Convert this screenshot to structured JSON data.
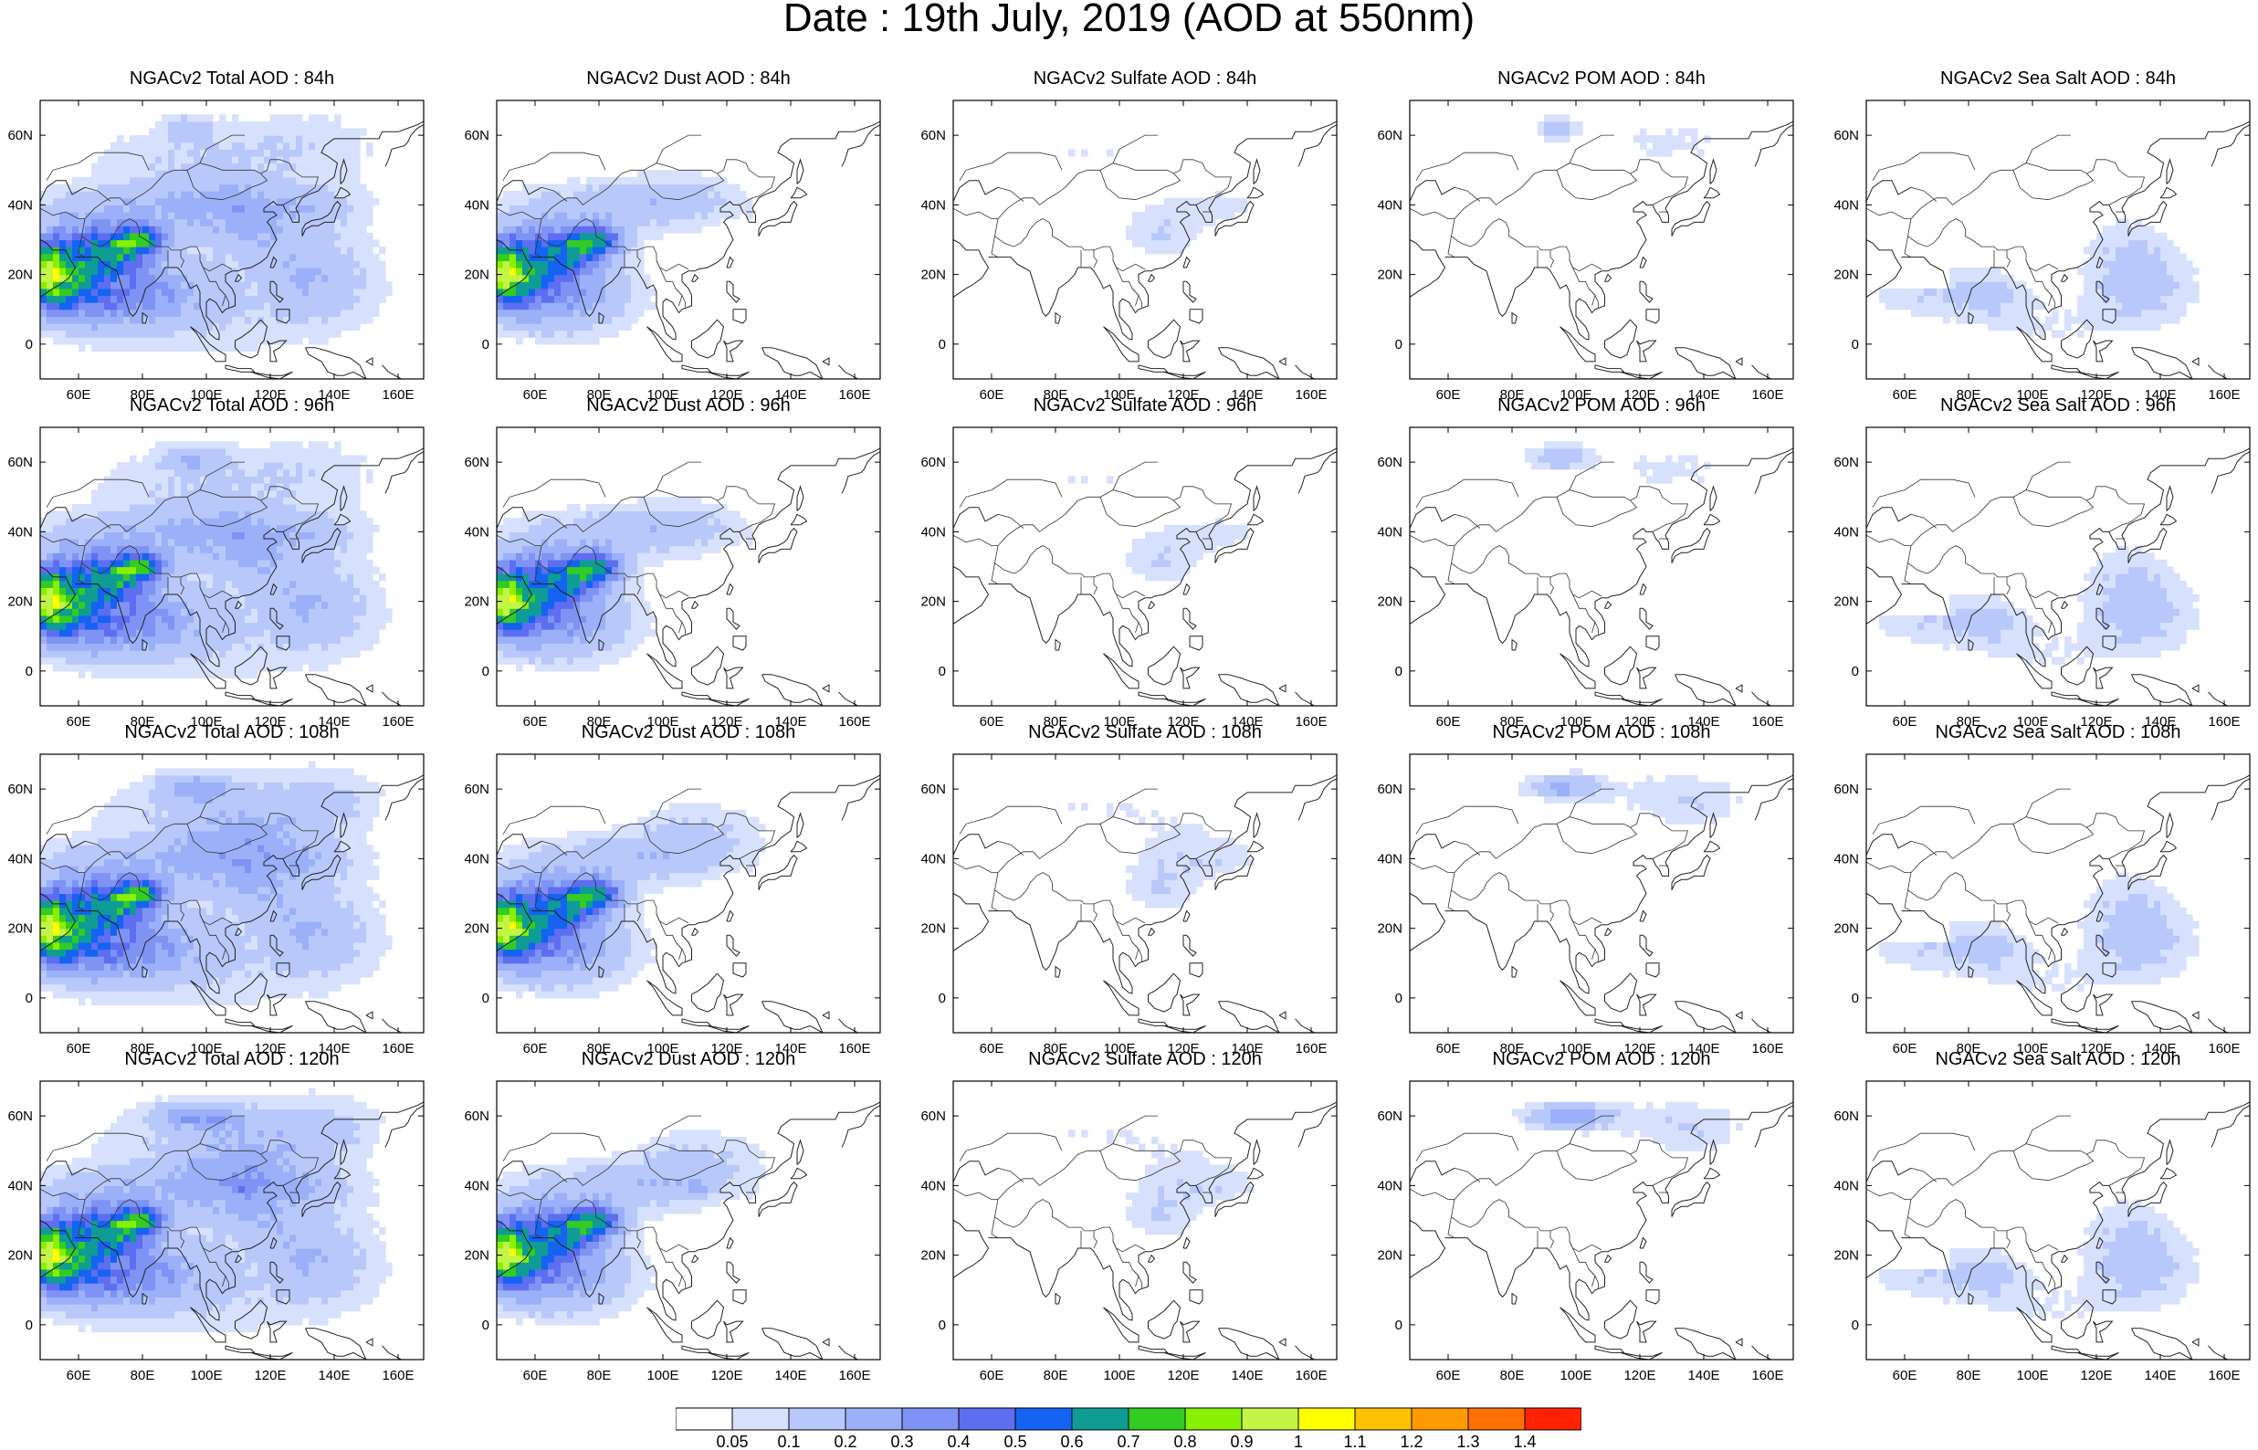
{
  "title": "Date : 19th July, 2019 (AOD at 550nm)",
  "axes": {
    "x_ticks": [
      "60E",
      "80E",
      "100E",
      "120E",
      "140E",
      "160E"
    ],
    "x_tick_values": [
      60,
      80,
      100,
      120,
      140,
      160
    ],
    "y_ticks": [
      "60N",
      "40N",
      "20N",
      "0"
    ],
    "y_tick_values": [
      60,
      40,
      20,
      0
    ],
    "lon_range": [
      48,
      168
    ],
    "lat_range": [
      -10,
      70
    ]
  },
  "panels": [
    {
      "title": "NGACv2 Total AOD : 84h",
      "type": "total",
      "hour": 84
    },
    {
      "title": "NGACv2 Dust AOD : 84h",
      "type": "dust",
      "hour": 84
    },
    {
      "title": "NGACv2 Sulfate AOD : 84h",
      "type": "sulfate",
      "hour": 84
    },
    {
      "title": "NGACv2 POM AOD : 84h",
      "type": "pom",
      "hour": 84
    },
    {
      "title": "NGACv2 Sea Salt AOD : 84h",
      "type": "seasalt",
      "hour": 84
    },
    {
      "title": "NGACv2 Total AOD : 96h",
      "type": "total",
      "hour": 96
    },
    {
      "title": "NGACv2 Dust AOD : 96h",
      "type": "dust",
      "hour": 96
    },
    {
      "title": "NGACv2 Sulfate AOD : 96h",
      "type": "sulfate",
      "hour": 96
    },
    {
      "title": "NGACv2 POM AOD : 96h",
      "type": "pom",
      "hour": 96
    },
    {
      "title": "NGACv2 Sea Salt AOD : 96h",
      "type": "seasalt",
      "hour": 96
    },
    {
      "title": "NGACv2 Total AOD : 108h",
      "type": "total",
      "hour": 108
    },
    {
      "title": "NGACv2 Dust AOD : 108h",
      "type": "dust",
      "hour": 108
    },
    {
      "title": "NGACv2 Sulfate AOD : 108h",
      "type": "sulfate",
      "hour": 108
    },
    {
      "title": "NGACv2 POM AOD : 108h",
      "type": "pom",
      "hour": 108
    },
    {
      "title": "NGACv2 Sea Salt AOD : 108h",
      "type": "seasalt",
      "hour": 108
    },
    {
      "title": "NGACv2 Total AOD : 120h",
      "type": "total",
      "hour": 120
    },
    {
      "title": "NGACv2 Dust AOD : 120h",
      "type": "dust",
      "hour": 120
    },
    {
      "title": "NGACv2 Sulfate AOD : 120h",
      "type": "sulfate",
      "hour": 120
    },
    {
      "title": "NGACv2 POM AOD : 120h",
      "type": "pom",
      "hour": 120
    },
    {
      "title": "NGACv2 Sea Salt  AOD : 120h",
      "type": "seasalt",
      "hour": 120
    }
  ],
  "colorbar": {
    "labels": [
      "0.05",
      "0.1",
      "0.2",
      "0.3",
      "0.4",
      "0.5",
      "0.6",
      "0.7",
      "0.8",
      "0.9",
      "1",
      "1.1",
      "1.2",
      "1.3",
      "1.4"
    ],
    "colors": [
      "#ffffff",
      "#d7e0fc",
      "#b8c8fb",
      "#9bb0f8",
      "#7f93f4",
      "#5d6ef0",
      "#1463f2",
      "#0e9c95",
      "#33cc22",
      "#88f000",
      "#c2f545",
      "#ffff00",
      "#ffc200",
      "#ff9a00",
      "#ff7000",
      "#ff2200"
    ]
  }
}
